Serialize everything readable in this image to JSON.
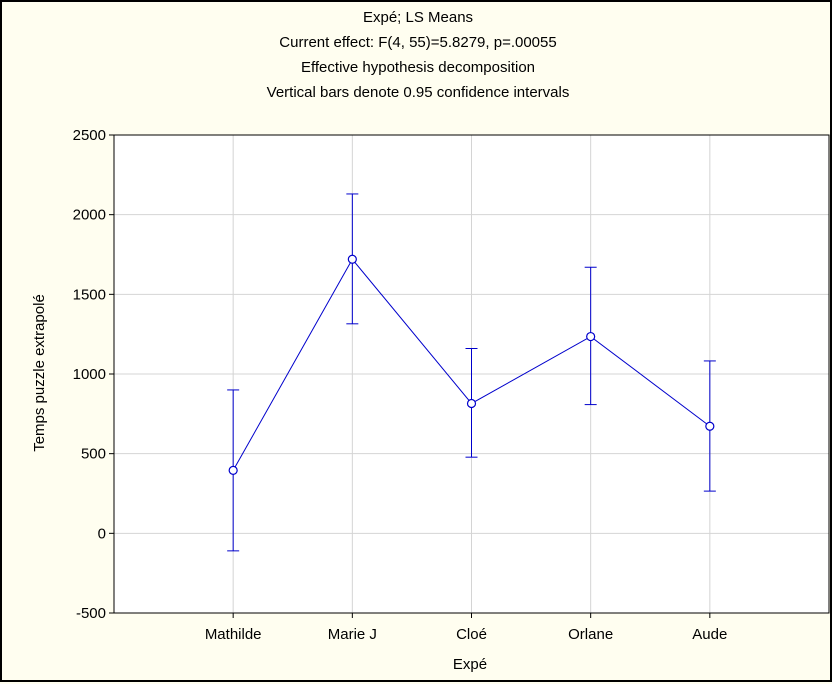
{
  "chart_data": {
    "type": "line",
    "title_lines": [
      "Expé; LS Means",
      "Current effect: F(4, 55)=5.8279, p=.00055",
      "Effective hypothesis decomposition",
      "Vertical bars denote 0.95 confidence intervals"
    ],
    "xlabel": "Expé",
    "ylabel": "Temps puzzle extrapolé",
    "categories": [
      "Mathilde",
      "Marie J",
      "Cloé",
      "Orlane",
      "Aude"
    ],
    "series": [
      {
        "values": [
          395,
          1720,
          815,
          1235,
          672
        ],
        "ci_low": [
          -110,
          1315,
          478,
          808,
          265
        ],
        "ci_high": [
          900,
          2130,
          1160,
          1670,
          1082
        ]
      }
    ],
    "ylim": [
      -500,
      2500
    ],
    "yticks": [
      -500,
      0,
      500,
      1000,
      1500,
      2000,
      2500
    ],
    "grid": true,
    "colors": {
      "series": "#0000cc",
      "grid": "#d4d4d4",
      "plot_background": "#ffffff",
      "page_background": "#fffef0"
    }
  }
}
